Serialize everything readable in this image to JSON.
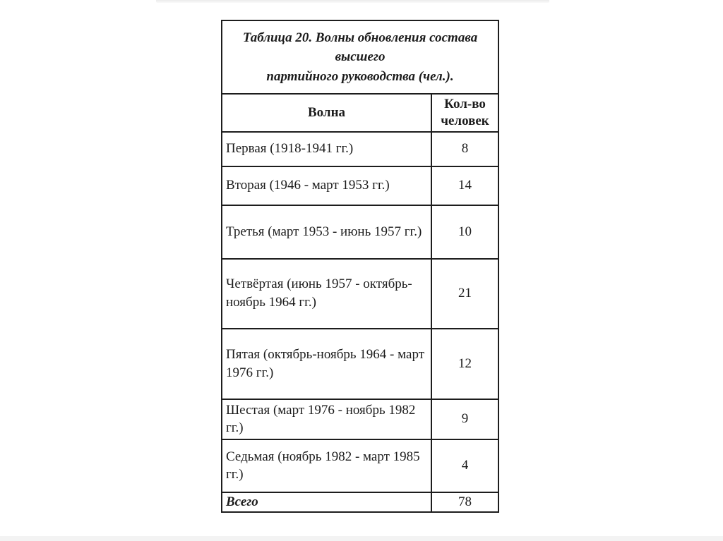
{
  "colors": {
    "background": "#ffffff",
    "table_border": "#1d1d1d",
    "text": "#1c1c1c",
    "page_edge": "#f0f0f0"
  },
  "slide": {
    "table": {
      "caption_lines": [
        "Таблица 20. Волны обновления состава высшего",
        "партийного руководства (чел.)."
      ],
      "headers": {
        "wave": "Волна",
        "count": "Кол-во человек"
      },
      "rows": [
        {
          "wave": "Первая (1918-1941 гг.)",
          "count": "8"
        },
        {
          "wave": "Вторая (1946 - март 1953 гг.)",
          "count": "14"
        },
        {
          "wave": "Третья (март 1953 - июнь 1957 гг.)",
          "count": "10"
        },
        {
          "wave": "Четвёртая (июнь 1957 - октябрь-ноябрь 1964 гг.)",
          "count": "21"
        },
        {
          "wave": "Пятая (октябрь-ноябрь 1964 - март 1976 гг.)",
          "count": "12"
        },
        {
          "wave": "Шестая (март 1976 - ноябрь 1982 гг.)",
          "count": "9"
        },
        {
          "wave": "Седьмая (ноябрь 1982 - март 1985 гг.)",
          "count": "4"
        }
      ],
      "total": {
        "label": "Всего",
        "count": "78"
      }
    }
  }
}
